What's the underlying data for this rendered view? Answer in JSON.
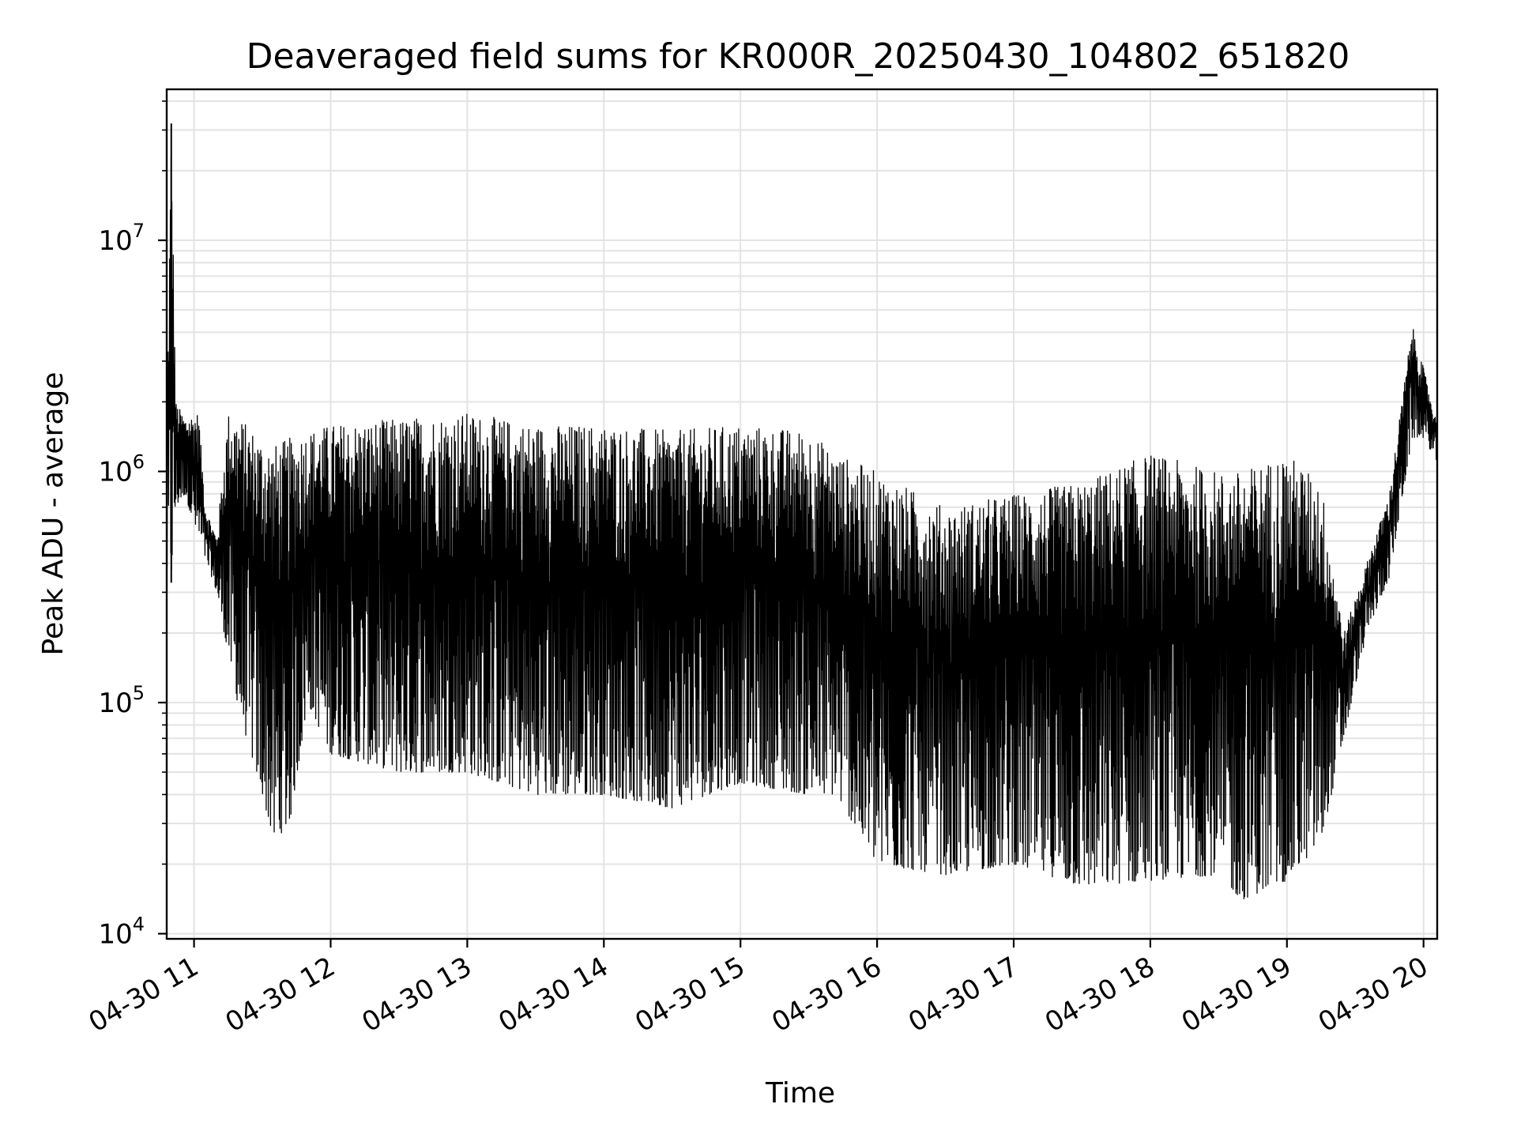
{
  "chart_data": {
    "type": "line",
    "title": "Deaveraged field sums for KR000R_20250430_104802_651820",
    "xlabel": "Time",
    "ylabel": "Peak ADU - average",
    "x_scale": "time",
    "y_scale": "log",
    "xlim": [
      "2025-04-30 10:48",
      "2025-04-30 20:06"
    ],
    "ylim": [
      9500,
      45000000
    ],
    "grid": true,
    "x_ticks": [
      {
        "value": "2025-04-30 11:00",
        "label": "04-30 11"
      },
      {
        "value": "2025-04-30 12:00",
        "label": "04-30 12"
      },
      {
        "value": "2025-04-30 13:00",
        "label": "04-30 13"
      },
      {
        "value": "2025-04-30 14:00",
        "label": "04-30 14"
      },
      {
        "value": "2025-04-30 15:00",
        "label": "04-30 15"
      },
      {
        "value": "2025-04-30 16:00",
        "label": "04-30 16"
      },
      {
        "value": "2025-04-30 17:00",
        "label": "04-30 17"
      },
      {
        "value": "2025-04-30 18:00",
        "label": "04-30 18"
      },
      {
        "value": "2025-04-30 19:00",
        "label": "04-30 19"
      },
      {
        "value": "2025-04-30 20:00",
        "label": "04-30 20"
      }
    ],
    "y_ticks": [
      {
        "value": 10000,
        "base": "10",
        "exp": "4"
      },
      {
        "value": 100000,
        "base": "10",
        "exp": "5"
      },
      {
        "value": 1000000,
        "base": "10",
        "exp": "6"
      },
      {
        "value": 10000000,
        "base": "10",
        "exp": "7"
      }
    ],
    "series": [
      {
        "color": "#000000",
        "envelope": [
          {
            "t": "2025-04-30 10:48",
            "low": 350000,
            "high": 1500000
          },
          {
            "t": "2025-04-30 10:50",
            "low": 330000,
            "high": 32000000
          },
          {
            "t": "2025-04-30 10:52",
            "low": 700000,
            "high": 2000000
          },
          {
            "t": "2025-04-30 10:56",
            "low": 800000,
            "high": 1700000
          },
          {
            "t": "2025-04-30 11:02",
            "low": 500000,
            "high": 1800000
          },
          {
            "t": "2025-04-30 11:05",
            "low": 420000,
            "high": 700000
          },
          {
            "t": "2025-04-30 11:10",
            "low": 300000,
            "high": 520000
          },
          {
            "t": "2025-04-30 11:15",
            "low": 160000,
            "high": 1800000
          },
          {
            "t": "2025-04-30 11:20",
            "low": 90000,
            "high": 1700000
          },
          {
            "t": "2025-04-30 11:30",
            "low": 40000,
            "high": 1400000
          },
          {
            "t": "2025-04-30 11:35",
            "low": 25000,
            "high": 1300000
          },
          {
            "t": "2025-04-30 11:42",
            "low": 30000,
            "high": 1400000
          },
          {
            "t": "2025-04-30 11:50",
            "low": 100000,
            "high": 1500000
          },
          {
            "t": "2025-04-30 12:00",
            "low": 60000,
            "high": 1600000
          },
          {
            "t": "2025-04-30 12:30",
            "low": 50000,
            "high": 1700000
          },
          {
            "t": "2025-04-30 13:00",
            "low": 50000,
            "high": 1800000
          },
          {
            "t": "2025-04-30 13:30",
            "low": 40000,
            "high": 1600000
          },
          {
            "t": "2025-04-30 14:00",
            "low": 40000,
            "high": 1600000
          },
          {
            "t": "2025-04-30 14:30",
            "low": 35000,
            "high": 1500000
          },
          {
            "t": "2025-04-30 15:00",
            "low": 45000,
            "high": 1600000
          },
          {
            "t": "2025-04-30 15:30",
            "low": 40000,
            "high": 1500000
          },
          {
            "t": "2025-04-30 15:42",
            "low": 40000,
            "high": 1200000
          },
          {
            "t": "2025-04-30 16:00",
            "low": 20000,
            "high": 1000000
          },
          {
            "t": "2025-04-30 16:30",
            "low": 18000,
            "high": 700000
          },
          {
            "t": "2025-04-30 17:00",
            "low": 20000,
            "high": 800000
          },
          {
            "t": "2025-04-30 17:30",
            "low": 16000,
            "high": 900000
          },
          {
            "t": "2025-04-30 18:00",
            "low": 17000,
            "high": 1200000
          },
          {
            "t": "2025-04-30 18:30",
            "low": 18000,
            "high": 1000000
          },
          {
            "t": "2025-04-30 18:40",
            "low": 14000,
            "high": 1000000
          },
          {
            "t": "2025-04-30 19:00",
            "low": 17000,
            "high": 1200000
          },
          {
            "t": "2025-04-30 19:15",
            "low": 25000,
            "high": 900000
          },
          {
            "t": "2025-04-30 19:25",
            "low": 70000,
            "high": 200000
          },
          {
            "t": "2025-04-30 19:35",
            "low": 200000,
            "high": 400000
          },
          {
            "t": "2025-04-30 19:45",
            "low": 350000,
            "high": 800000
          },
          {
            "t": "2025-04-30 19:55",
            "low": 1400000,
            "high": 4300000
          },
          {
            "t": "2025-04-30 20:00",
            "low": 1400000,
            "high": 2800000
          },
          {
            "t": "2025-04-30 20:06",
            "low": 1100000,
            "high": 1600000
          }
        ]
      }
    ]
  }
}
